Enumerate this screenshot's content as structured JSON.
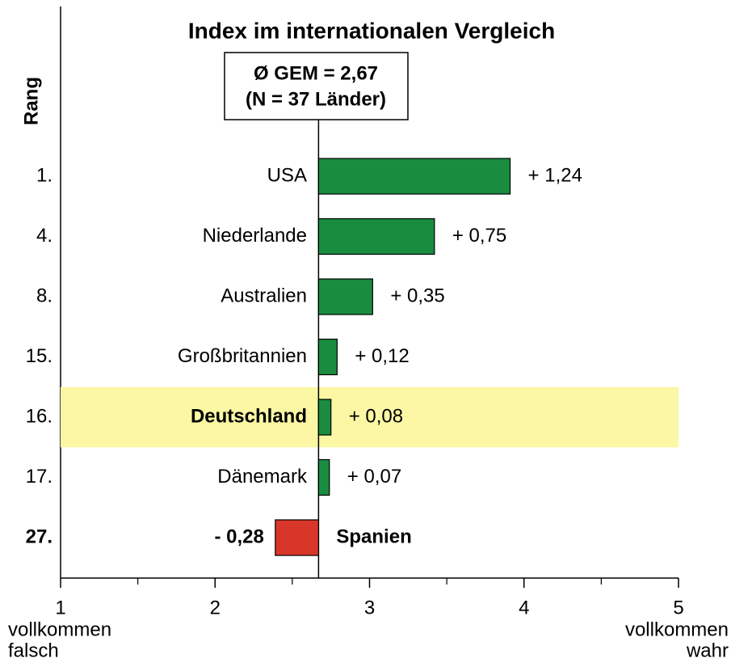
{
  "chart_data": {
    "type": "bar",
    "orientation": "horizontal",
    "title": "Index im internationalen Vergleich",
    "annotation": [
      "Ø GEM = 2,67",
      "(N = 37 Länder)"
    ],
    "baseline": 2.67,
    "rank_label": "Rang",
    "ranks": [
      "1.",
      "4.",
      "8.",
      "15.",
      "16.",
      "17.",
      "27."
    ],
    "categories": [
      "USA",
      "Niederlande",
      "Australien",
      "Großbritannien",
      "Deutschland",
      "Dänemark",
      "Spanien"
    ],
    "values": [
      1.24,
      0.75,
      0.35,
      0.12,
      0.08,
      0.07,
      -0.28
    ],
    "value_labels": [
      "+ 1,24",
      "+ 0,75",
      "+ 0,35",
      "+ 0,12",
      "+ 0,08",
      "+ 0,07",
      "- 0,28"
    ],
    "positive_color": "#1a8c40",
    "negative_color": "#d9362a",
    "highlight": 4,
    "highlight_color": "#fbf7a4",
    "xlim": [
      1,
      5
    ],
    "xticks": [
      1,
      2,
      3,
      4,
      5
    ],
    "xminor_ticks": [
      1.5,
      2.5,
      3.5,
      4.5
    ],
    "x_min_label": [
      "vollkommen",
      "falsch"
    ],
    "x_max_label": [
      "vollkommen",
      "wahr"
    ]
  }
}
